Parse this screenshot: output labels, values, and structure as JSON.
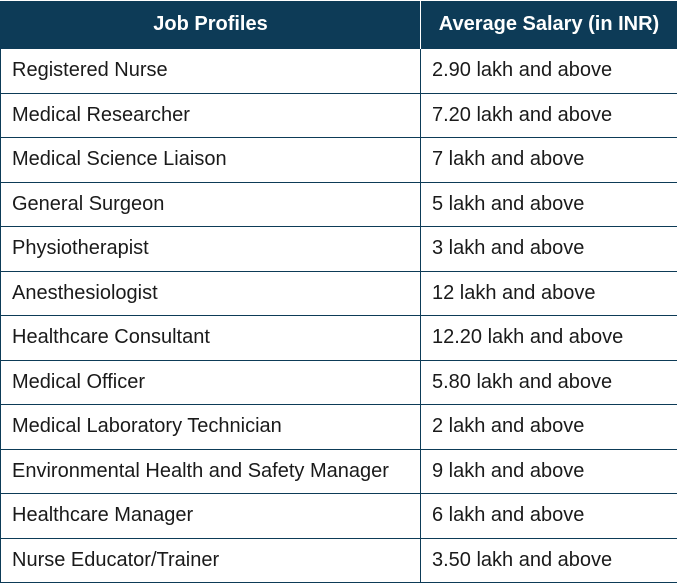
{
  "table": {
    "headers": {
      "profile": "Job Profiles",
      "salary": "Average Salary (in INR)"
    },
    "rows": [
      {
        "profile": "Registered Nurse",
        "salary": "2.90 lakh and above"
      },
      {
        "profile": "Medical Researcher",
        "salary": "7.20 lakh and above"
      },
      {
        "profile": "Medical Science Liaison",
        "salary": "7 lakh and above"
      },
      {
        "profile": "General Surgeon",
        "salary": "5 lakh and above"
      },
      {
        "profile": "Physiotherapist",
        "salary": "3 lakh and above"
      },
      {
        "profile": "Anesthesiologist",
        "salary": "12 lakh and above"
      },
      {
        "profile": "Healthcare Consultant",
        "salary": "12.20 lakh and above"
      },
      {
        "profile": "Medical Officer",
        "salary": "5.80 lakh and above"
      },
      {
        "profile": "Medical Laboratory Technician",
        "salary": "2 lakh and above"
      },
      {
        "profile": "Environmental Health and Safety Manager",
        "salary": "9 lakh and above"
      },
      {
        "profile": "Healthcare Manager",
        "salary": "6 lakh and above"
      },
      {
        "profile": "Nurse Educator/Trainer",
        "salary": "3.50 lakh and above"
      }
    ]
  },
  "colors": {
    "header_background": "#0d3b57",
    "header_text": "#ffffff",
    "border": "#0d3b57",
    "body_text": "#1a1a1a"
  }
}
